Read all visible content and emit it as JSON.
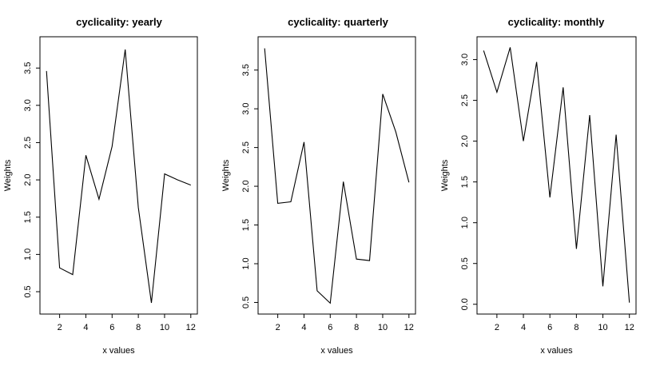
{
  "chart_data": [
    {
      "type": "line",
      "title": "cyclicality: yearly",
      "xlabel": "x values",
      "ylabel": "Weights",
      "x": [
        1,
        2,
        3,
        4,
        5,
        6,
        7,
        8,
        9,
        10,
        11,
        12
      ],
      "values": [
        3.46,
        0.82,
        0.73,
        2.33,
        1.74,
        2.45,
        3.75,
        1.63,
        0.35,
        2.08,
        2.0,
        1.93
      ],
      "xlim": [
        0.5,
        12.5
      ],
      "ylim": [
        0.2,
        3.92
      ],
      "xticks": [
        2,
        4,
        6,
        8,
        10,
        12
      ],
      "xtick_labels": [
        "2",
        "4",
        "6",
        "8",
        "10",
        "12"
      ],
      "yticks": [
        0.5,
        1.0,
        1.5,
        2.0,
        2.5,
        3.0,
        3.5
      ],
      "ytick_labels": [
        "0.5",
        "1.0",
        "1.5",
        "2.0",
        "2.5",
        "3.0",
        "3.5"
      ],
      "grid": false
    },
    {
      "type": "line",
      "title": "cyclicality: quarterly",
      "xlabel": "x values",
      "ylabel": "Weights",
      "x": [
        1,
        2,
        3,
        4,
        5,
        6,
        7,
        8,
        9,
        10,
        11,
        12
      ],
      "values": [
        3.78,
        1.78,
        1.8,
        2.57,
        0.65,
        0.49,
        2.06,
        1.06,
        1.04,
        3.19,
        2.7,
        2.05
      ],
      "xlim": [
        0.5,
        12.5
      ],
      "ylim": [
        0.35,
        3.93
      ],
      "xticks": [
        2,
        4,
        6,
        8,
        10,
        12
      ],
      "xtick_labels": [
        "2",
        "4",
        "6",
        "8",
        "10",
        "12"
      ],
      "yticks": [
        0.5,
        1.0,
        1.5,
        2.0,
        2.5,
        3.0,
        3.5
      ],
      "ytick_labels": [
        "0.5",
        "1.0",
        "1.5",
        "2.0",
        "2.5",
        "3.0",
        "3.5"
      ],
      "grid": false
    },
    {
      "type": "line",
      "title": "cyclicality: monthly",
      "xlabel": "x values",
      "ylabel": "Weights",
      "x": [
        1,
        2,
        3,
        4,
        5,
        6,
        7,
        8,
        9,
        10,
        11,
        12
      ],
      "values": [
        3.11,
        2.6,
        3.15,
        2.0,
        2.97,
        1.31,
        2.66,
        0.68,
        2.32,
        0.22,
        2.08,
        0.02
      ],
      "xlim": [
        0.5,
        12.5
      ],
      "ylim": [
        -0.12,
        3.28
      ],
      "xticks": [
        2,
        4,
        6,
        8,
        10,
        12
      ],
      "xtick_labels": [
        "2",
        "4",
        "6",
        "8",
        "10",
        "12"
      ],
      "yticks": [
        0.0,
        0.5,
        1.0,
        1.5,
        2.0,
        2.5,
        3.0
      ],
      "ytick_labels": [
        "0.0",
        "0.5",
        "1.0",
        "1.5",
        "2.0",
        "2.5",
        "3.0"
      ],
      "grid": false
    }
  ]
}
